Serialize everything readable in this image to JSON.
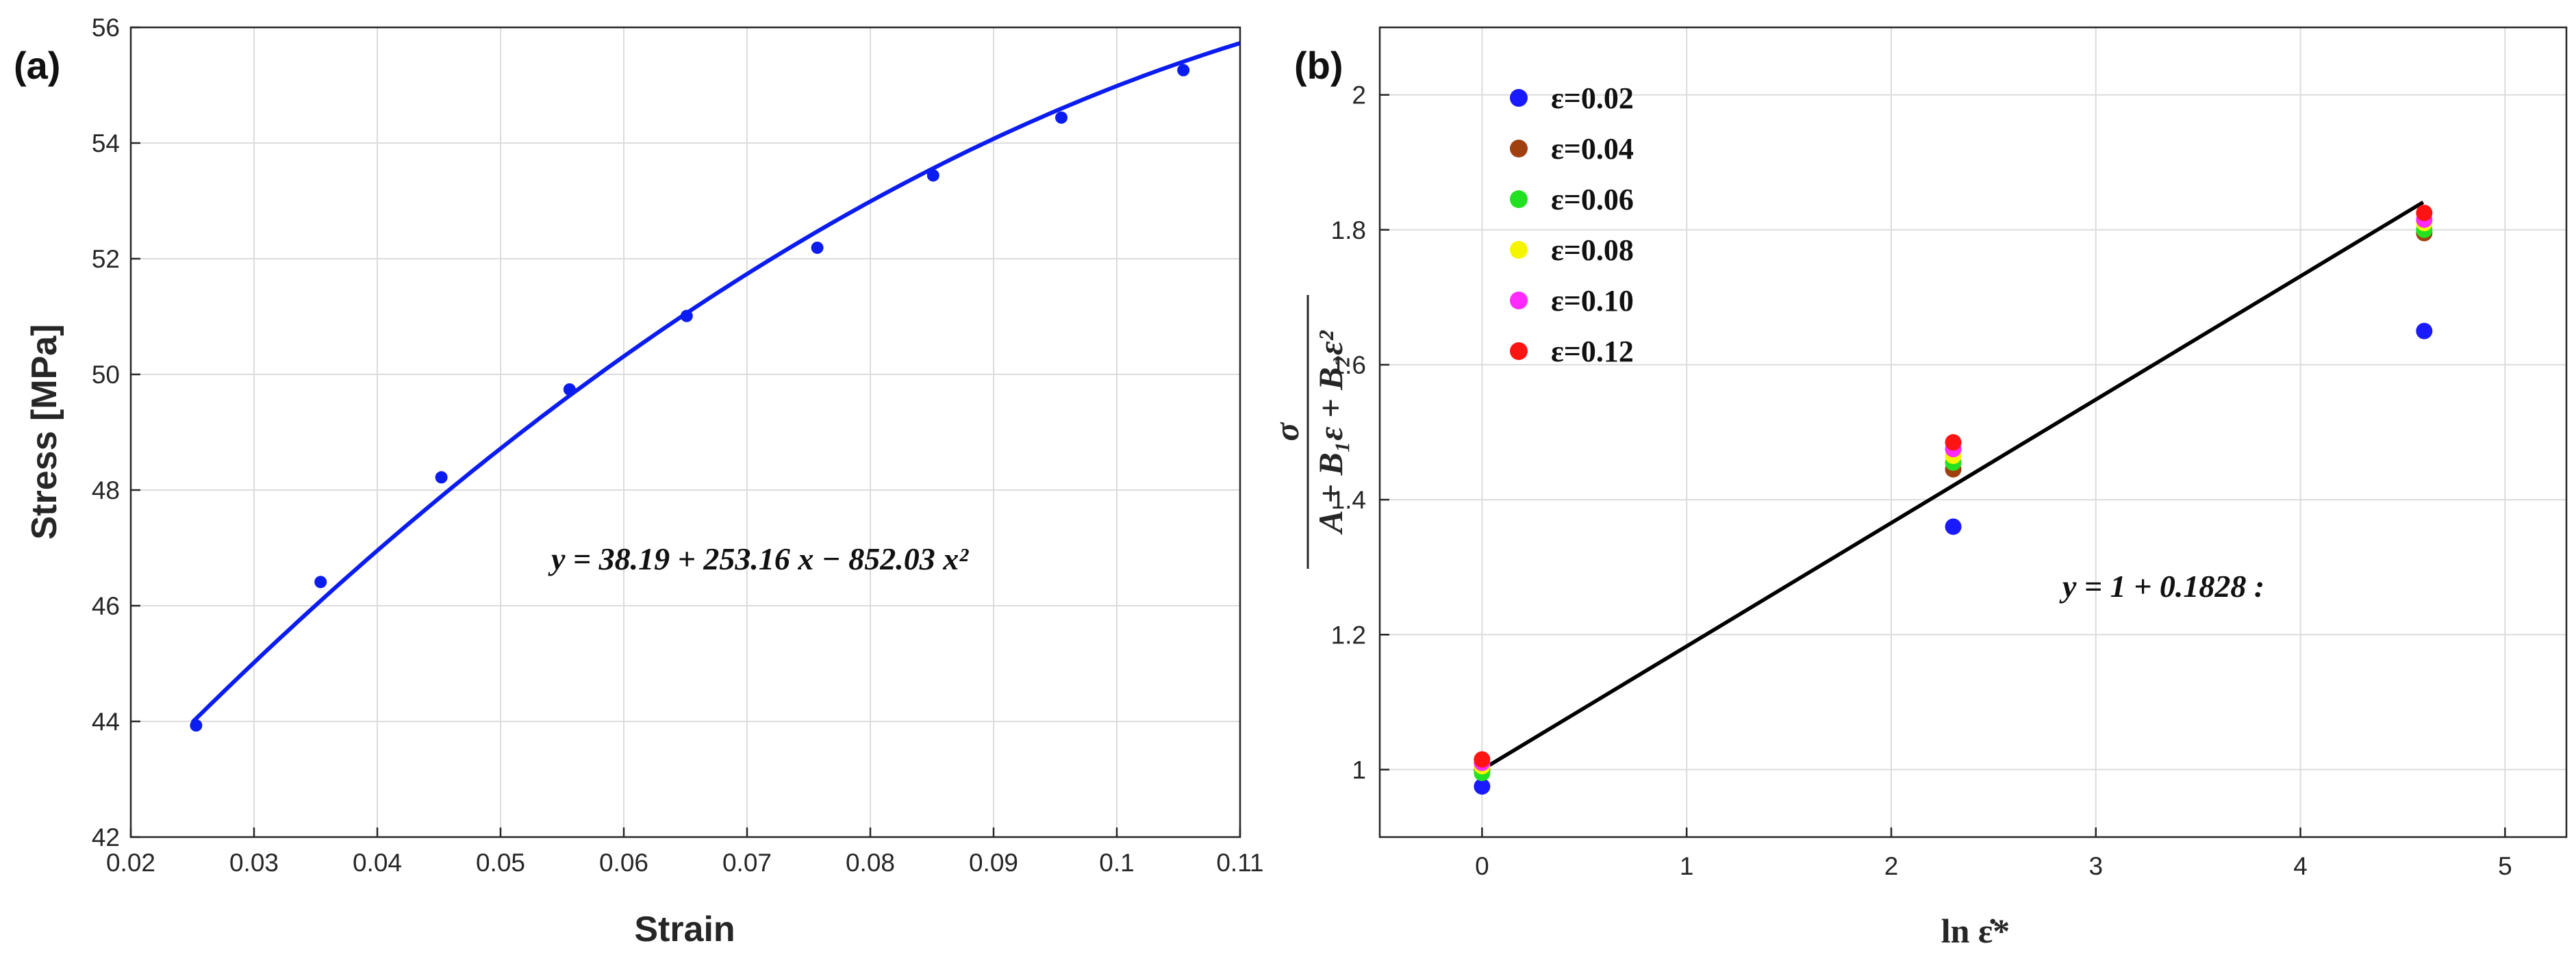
{
  "chart_data": [
    {
      "type": "scatter",
      "panel_label": "(a)",
      "xlabel": "Strain",
      "ylabel": "Stress [MPa]",
      "xlim": [
        0.02,
        0.11
      ],
      "ylim": [
        42,
        56
      ],
      "xticks": [
        "0.02",
        "0.03",
        "0.04",
        "0.05",
        "0.06",
        "0.07",
        "0.08",
        "0.09",
        "0.1",
        "0.11"
      ],
      "yticks": [
        "42",
        "44",
        "46",
        "48",
        "50",
        "52",
        "54",
        "56"
      ],
      "grid": true,
      "series": [
        {
          "name": "data",
          "color": "#0a1cf0",
          "x": [
            0.0253,
            0.0354,
            0.0452,
            0.0556,
            0.0651,
            0.0757,
            0.0851,
            0.0955,
            0.1054
          ],
          "y": [
            43.93,
            46.41,
            48.22,
            49.74,
            51.01,
            52.19,
            53.44,
            54.44,
            55.26
          ]
        }
      ],
      "fit": {
        "c0": 38.19,
        "c1": 253.16,
        "c2": -852.03,
        "x_from": 0.025,
        "x_to": 0.11,
        "color": "#0a1cf0"
      },
      "equation": "y = 38.19 + 253.16 x − 852.03 x²"
    },
    {
      "type": "scatter",
      "panel_label": "(b)",
      "xlabel": "ln ε̇*",
      "ylabel": "σ / (A + B₁ε + B₂ε²)",
      "ylabel_numerator": "σ",
      "ylabel_denominator": "A + B₁ε + B₂ε²",
      "xlim": [
        -0.5,
        5.3
      ],
      "ylim": [
        0.9,
        2.1
      ],
      "xticks": [
        "0",
        "1",
        "2",
        "3",
        "4",
        "5"
      ],
      "yticks": [
        "1",
        "1.2",
        "1.4",
        "1.6",
        "1.8",
        "2"
      ],
      "grid": true,
      "x": [
        0,
        2.303,
        4.605
      ],
      "series": [
        {
          "name": "ε=0.02",
          "color": "#1a1aff",
          "values": [
            0.975,
            1.36,
            1.65
          ]
        },
        {
          "name": "ε=0.04",
          "color": "#a0400f",
          "values": [
            1.0,
            1.445,
            1.795
          ]
        },
        {
          "name": "ε=0.06",
          "color": "#22e022",
          "values": [
            0.995,
            1.455,
            1.8
          ]
        },
        {
          "name": "ε=0.08",
          "color": "#f5f500",
          "values": [
            1.005,
            1.465,
            1.81
          ]
        },
        {
          "name": "ε=0.10",
          "color": "#ff2aff",
          "values": [
            1.01,
            1.475,
            1.815
          ]
        },
        {
          "name": "ε=0.12",
          "color": "#ff1414",
          "values": [
            1.015,
            1.485,
            1.825
          ]
        }
      ],
      "fit": {
        "c0": 1,
        "c1": 0.1828,
        "x_from": 0,
        "x_to": 4.6,
        "color": "#000000"
      },
      "equation": "y = 1 + 0.1828 :",
      "legend_position": "top-left"
    }
  ]
}
